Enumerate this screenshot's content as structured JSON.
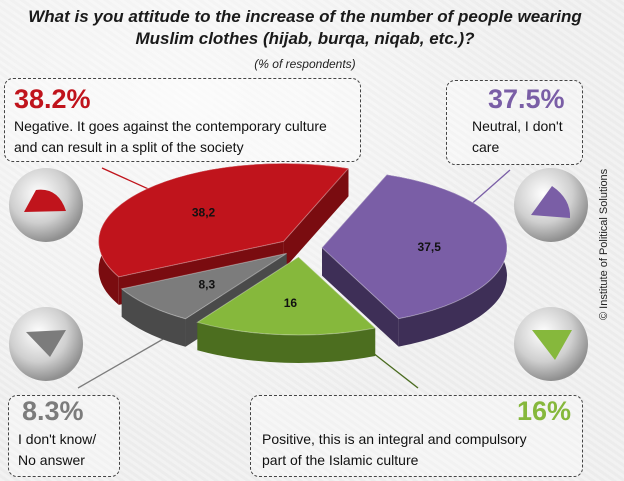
{
  "title_line1": "What is you attitude to the increase of the number of people wearing",
  "title_line2": "Muslim clothes (hijab, burqa, niqab, etc.)?",
  "subtitle": "(% of respondents)",
  "credit": "© Institute of Political Solutions",
  "callouts": {
    "negative": {
      "pct": "38.2%",
      "line1": "Negative. It goes against the contemporary culture",
      "line2": "and can result in a split of the society"
    },
    "neutral": {
      "pct": "37.5%",
      "line1": "Neutral, I don't",
      "line2": "care"
    },
    "dont_know": {
      "pct": "8.3%",
      "line1": "I don't know/",
      "line2": "No answer"
    },
    "positive": {
      "pct": "16%",
      "line1": "Positive, this is an integral and compulsory",
      "line2": "part of the Islamic culture"
    }
  },
  "colors": {
    "negative": "#c0141c",
    "neutral": "#7a5ea6",
    "dont_know": "#7c7c7c",
    "positive": "#86b83c"
  },
  "chart_data": {
    "type": "pie",
    "title": "What is you attitude to the increase of the number of people wearing Muslim clothes (hijab, burqa, niqab, etc.)?",
    "subtitle": "(% of respondents)",
    "categories": [
      "Negative. It goes against the contemporary culture and can result in a split of the society",
      "Neutral, I don't care",
      "Positive, this is an integral and compulsory part of the Islamic culture",
      "I don't know/ No answer"
    ],
    "values": [
      38.2,
      37.5,
      16,
      8.3
    ],
    "data_labels": [
      "38,2",
      "37,5",
      "16",
      "8,3"
    ]
  }
}
